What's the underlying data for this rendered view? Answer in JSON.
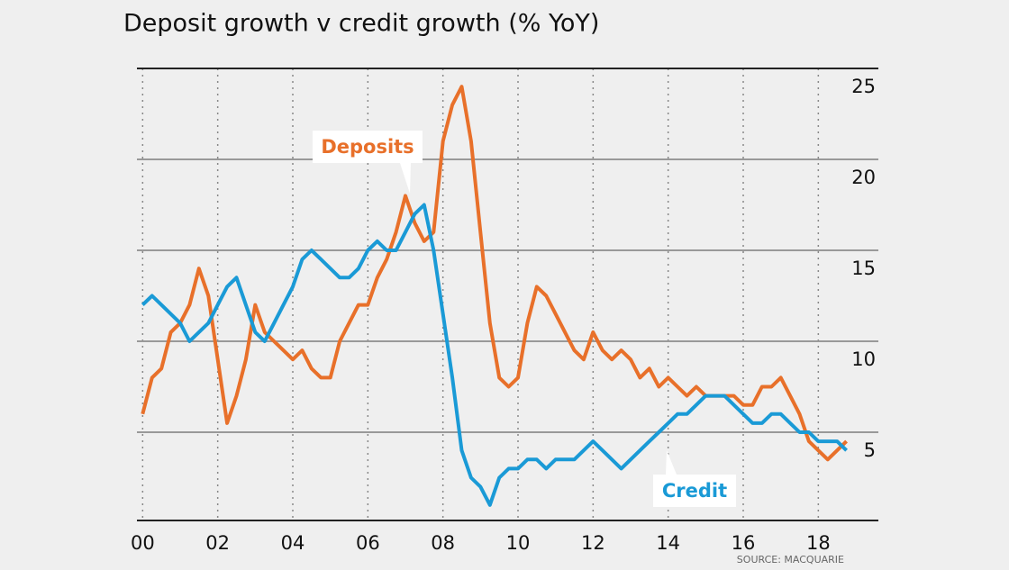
{
  "chart_data": {
    "type": "line",
    "title": "Deposit growth v credit growth (% YoY)",
    "source": "SOURCE: MACQUARIE",
    "annotations": [
      "Deposits",
      "Credit"
    ],
    "x": [
      2000,
      2000.25,
      2000.5,
      2000.75,
      2001,
      2001.25,
      2001.5,
      2001.75,
      2002,
      2002.25,
      2002.5,
      2002.75,
      2003,
      2003.25,
      2003.5,
      2003.75,
      2004,
      2004.25,
      2004.5,
      2004.75,
      2005,
      2005.25,
      2005.5,
      2005.75,
      2006,
      2006.25,
      2006.5,
      2006.75,
      2007,
      2007.25,
      2007.5,
      2007.75,
      2008,
      2008.25,
      2008.5,
      2008.75,
      2009,
      2009.25,
      2009.5,
      2009.75,
      2010,
      2010.25,
      2010.5,
      2010.75,
      2011,
      2011.25,
      2011.5,
      2011.75,
      2012,
      2012.25,
      2012.5,
      2012.75,
      2013,
      2013.25,
      2013.5,
      2013.75,
      2014,
      2014.25,
      2014.5,
      2014.75,
      2015,
      2015.25,
      2015.5,
      2015.75,
      2016,
      2016.25,
      2016.5,
      2016.75,
      2017,
      2017.25,
      2017.5,
      2017.75,
      2018,
      2018.25,
      2018.5,
      2018.75
    ],
    "series": [
      {
        "name": "Deposits",
        "color": "#e8702a",
        "values": [
          6,
          8,
          8.5,
          10.5,
          11,
          12,
          14,
          12.5,
          9,
          5.5,
          7,
          9,
          12,
          10.5,
          10,
          9.5,
          9,
          9.5,
          8.5,
          8,
          8,
          10,
          11,
          12,
          12,
          13.5,
          14.5,
          16,
          18,
          16.5,
          15.5,
          16,
          21,
          23,
          24,
          21,
          16,
          11,
          8,
          7.5,
          8,
          11,
          13,
          12.5,
          11.5,
          10.5,
          9.5,
          9,
          10.5,
          9.5,
          9,
          9.5,
          9,
          8,
          8.5,
          7.5,
          8,
          7.5,
          7,
          7.5,
          7,
          7,
          7,
          7,
          6.5,
          6.5,
          7.5,
          7.5,
          8,
          7,
          6,
          4.5,
          4,
          3.5,
          4,
          4.5
        ]
      },
      {
        "name": "Credit",
        "color": "#1a9ad6",
        "values": [
          12,
          12.5,
          12,
          11.5,
          11,
          10,
          10.5,
          11,
          12,
          13,
          13.5,
          12,
          10.5,
          10,
          11,
          12,
          13,
          14.5,
          15,
          14.5,
          14,
          13.5,
          13.5,
          14,
          15,
          15.5,
          15,
          15,
          16,
          17,
          17.5,
          15,
          11.5,
          8,
          4,
          2.5,
          2,
          1,
          2.5,
          3,
          3,
          3.5,
          3.5,
          3,
          3.5,
          3.5,
          3.5,
          4,
          4.5,
          4,
          3.5,
          3,
          3.5,
          4,
          4.5,
          5,
          5.5,
          6,
          6,
          6.5,
          7,
          7,
          7,
          6.5,
          6,
          5.5,
          5.5,
          6,
          6,
          5.5,
          5,
          5,
          4.5,
          4.5,
          4.5,
          4
        ]
      }
    ],
    "xlim": [
      1999.8,
      2019.6
    ],
    "xticks": [
      {
        "value": 2000,
        "label": "00"
      },
      {
        "value": 2002,
        "label": "02"
      },
      {
        "value": 2004,
        "label": "04"
      },
      {
        "value": 2006,
        "label": "06"
      },
      {
        "value": 2008,
        "label": "08"
      },
      {
        "value": 2010,
        "label": "10"
      },
      {
        "value": 2012,
        "label": "12"
      },
      {
        "value": 2014,
        "label": "14"
      },
      {
        "value": 2016,
        "label": "16"
      },
      {
        "value": 2018,
        "label": "18"
      }
    ],
    "ylim": [
      0,
      25
    ],
    "yticks": [
      5,
      10,
      15,
      20,
      25
    ],
    "grid": true
  }
}
